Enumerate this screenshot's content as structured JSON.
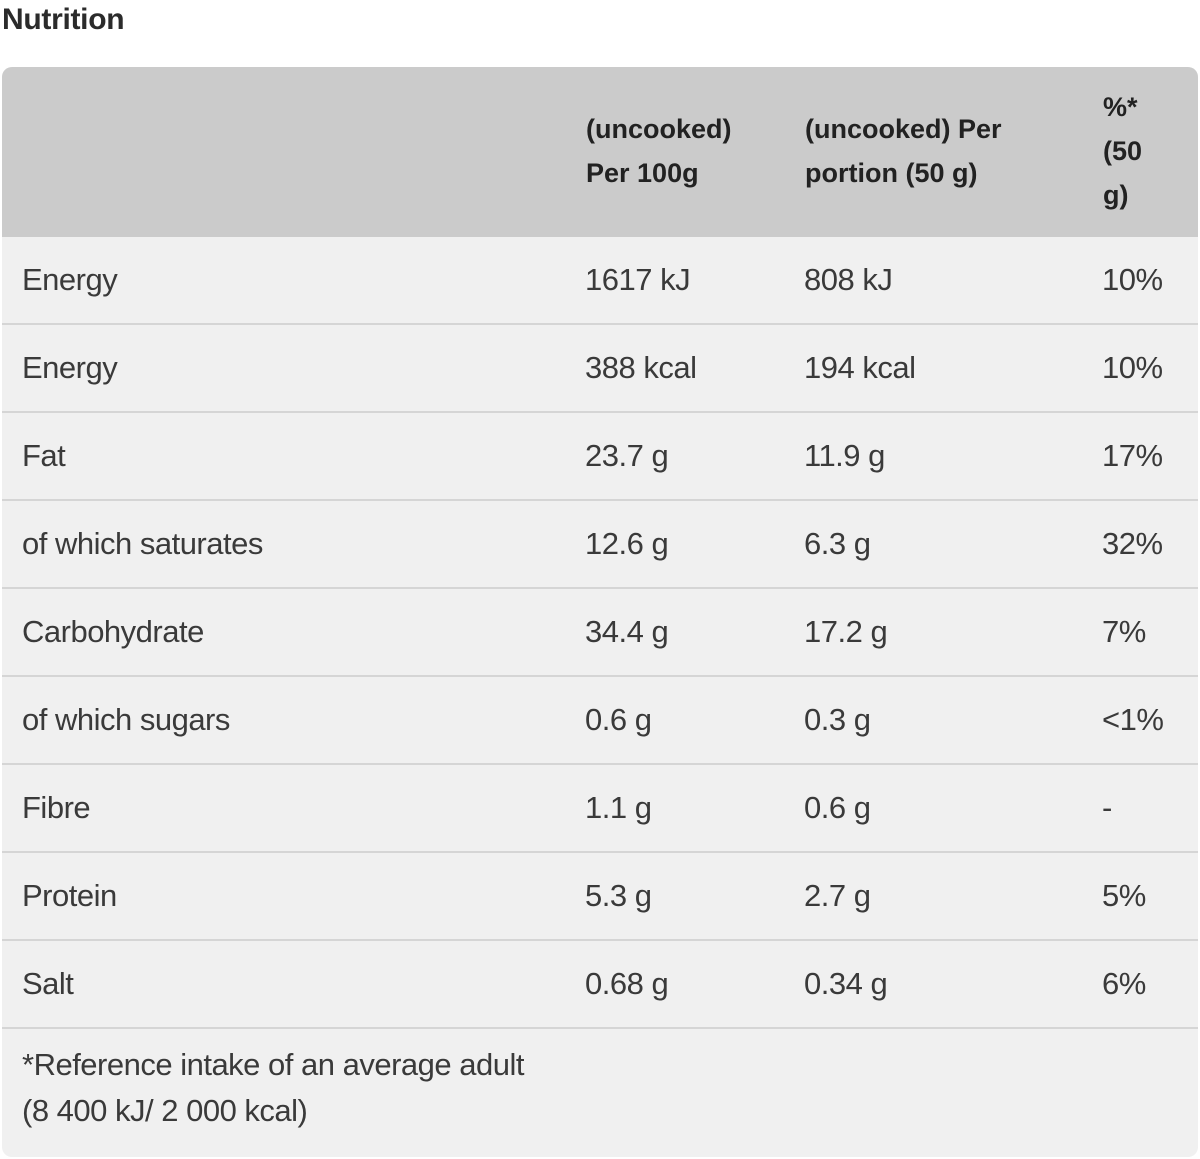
{
  "title": "Nutrition",
  "header": {
    "col_per100_line1": "(uncooked)",
    "col_per100_line2": "Per 100g",
    "col_portion_line1": "(uncooked) Per",
    "col_portion_line2": "portion (50 g)",
    "col_pct_line1": "%*",
    "col_pct_line2": "(50",
    "col_pct_line3": "g)"
  },
  "rows": [
    {
      "name": "Energy",
      "per100": "1617 kJ",
      "portion": "808 kJ",
      "pct": "10%"
    },
    {
      "name": "Energy",
      "per100": "388 kcal",
      "portion": "194 kcal",
      "pct": "10%"
    },
    {
      "name": "Fat",
      "per100": "23.7 g",
      "portion": "11.9 g",
      "pct": "17%"
    },
    {
      "name": "of which saturates",
      "per100": "12.6 g",
      "portion": "6.3 g",
      "pct": "32%"
    },
    {
      "name": "Carbohydrate",
      "per100": "34.4 g",
      "portion": "17.2 g",
      "pct": "7%"
    },
    {
      "name": "of which sugars",
      "per100": "0.6 g",
      "portion": "0.3 g",
      "pct": "<1%"
    },
    {
      "name": "Fibre",
      "per100": "1.1 g",
      "portion": "0.6 g",
      "pct": "-"
    },
    {
      "name": "Protein",
      "per100": "5.3 g",
      "portion": "2.7 g",
      "pct": "5%"
    },
    {
      "name": "Salt",
      "per100": "0.68 g",
      "portion": "0.34 g",
      "pct": "6%"
    }
  ],
  "footnote": {
    "line1": "*Reference intake of an average adult",
    "line2": "(8 400 kJ/ 2 000 kcal)"
  }
}
